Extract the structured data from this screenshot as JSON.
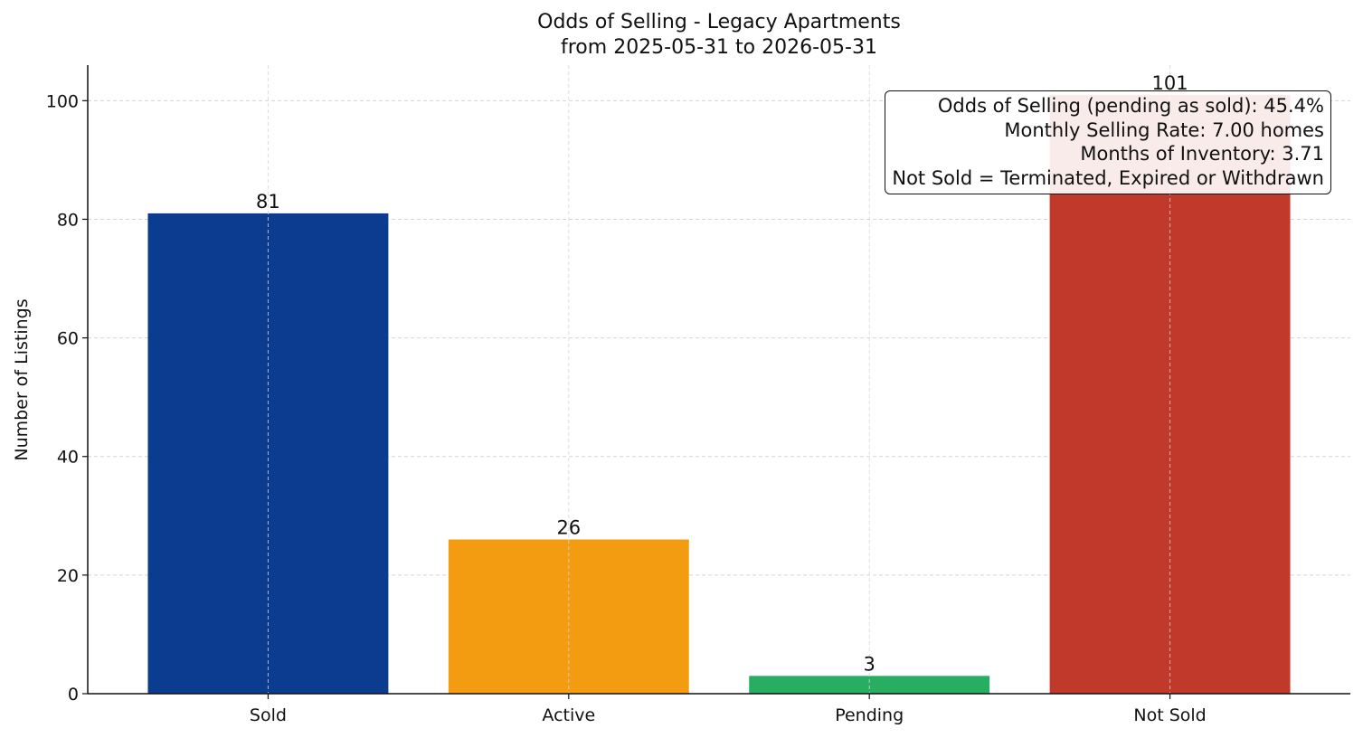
{
  "chart_data": {
    "type": "bar",
    "title": "Odds of Selling - Legacy Apartments",
    "subtitle": "from 2025-05-31 to 2026-05-31",
    "xlabel": "",
    "ylabel": "Number of Listings",
    "categories": [
      "Sold",
      "Active",
      "Pending",
      "Not Sold"
    ],
    "values": [
      81,
      26,
      3,
      101
    ],
    "colors": [
      "#0b3c8f",
      "#f39c12",
      "#27ae60",
      "#c0392b"
    ],
    "ylim": [
      0,
      106
    ],
    "yticks": [
      0,
      20,
      40,
      60,
      80,
      100
    ],
    "grid": true,
    "annotation": {
      "position": "top-right",
      "lines": [
        "Odds of Selling (pending as sold): 45.4%",
        "Monthly Selling Rate: 7.00 homes",
        "Months of Inventory: 3.71",
        "Not Sold = Terminated, Expired or Withdrawn"
      ]
    }
  }
}
